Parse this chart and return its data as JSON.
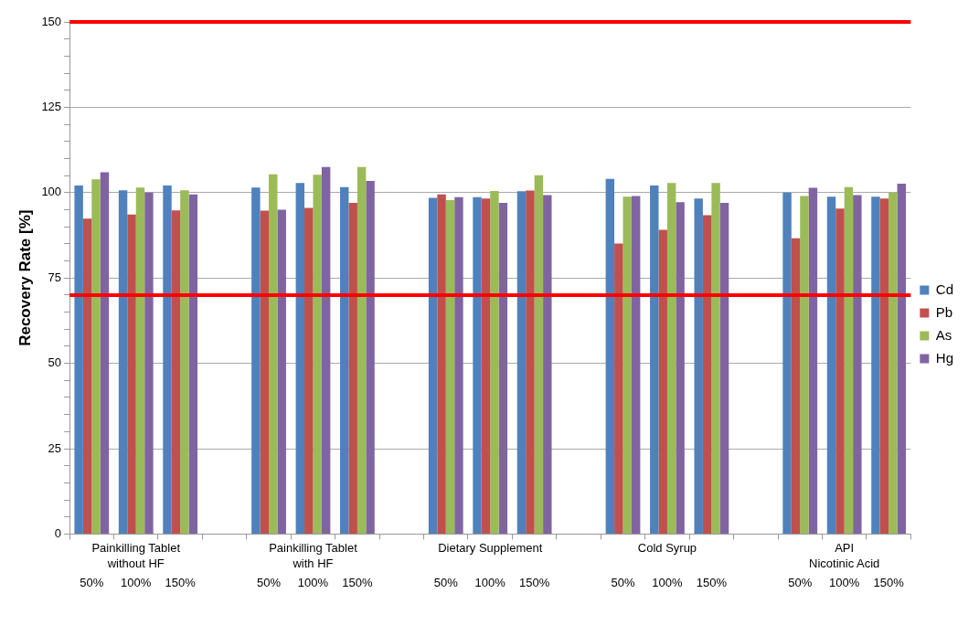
{
  "chart_data": {
    "type": "bar",
    "ylabel": "Recovery Rate [%]",
    "categories": [
      "50%",
      "100%",
      "150%",
      null,
      "50%",
      "100%",
      "150%",
      null,
      "50%",
      "100%",
      "150%",
      null,
      "50%",
      "100%",
      "150%",
      null,
      "50%",
      "100%",
      "150%"
    ],
    "series": [
      {
        "name": "Cd",
        "color": "#4f81bd",
        "values": [
          102.1,
          100.7,
          102.1,
          null,
          101.5,
          102.8,
          101.6,
          null,
          98.5,
          98.7,
          100.4,
          null,
          104.0,
          102.1,
          98.3,
          null,
          100,
          98.8,
          98.8
        ]
      },
      {
        "name": "Pb",
        "color": "#c0504d",
        "values": [
          92.4,
          93.6,
          94.8,
          null,
          94.7,
          95.5,
          97.0,
          null,
          99.5,
          98.3,
          100.6,
          null,
          85.1,
          89.1,
          93.4,
          null,
          86.6,
          95.3,
          98.3
        ]
      },
      {
        "name": "As",
        "color": "#9bbb59",
        "values": [
          103.9,
          101.5,
          100.7,
          null,
          105.4,
          105.2,
          107.5,
          null,
          97.8,
          100.5,
          105.1,
          null,
          98.8,
          102.8,
          102.8,
          null,
          99.0,
          101.6,
          100
        ]
      },
      {
        "name": "Hg",
        "color": "#8064a2",
        "values": [
          106.0,
          100,
          99.5,
          null,
          95.0,
          107.5,
          103.4,
          null,
          98.7,
          97.0,
          99.3,
          null,
          99.0,
          97.2,
          97.0,
          null,
          101.4,
          99.3,
          102.6
        ]
      }
    ],
    "annotations": [
      "Painkilling Tablet\nwithout HF",
      "Painkilling Tablet\nwith HF",
      "Dietary Supplement",
      "Cold Syrup",
      "API\nNicotinic Acid"
    ],
    "ylim": [
      0,
      150
    ],
    "yticks": [
      0,
      {
        "value": 5,
        "label": null
      },
      {
        "value": 10,
        "label": null
      },
      {
        "value": 15,
        "label": null
      },
      {
        "value": 20,
        "label": null
      },
      25,
      {
        "value": 30,
        "label": null
      },
      {
        "value": 35,
        "label": null
      },
      {
        "value": 40,
        "label": null
      },
      {
        "value": 45,
        "label": null
      },
      50,
      {
        "value": 55,
        "label": null
      },
      {
        "value": 60,
        "label": null
      },
      {
        "value": 65,
        "label": null
      },
      {
        "value": 70,
        "label": null
      },
      75,
      {
        "value": 80,
        "label": null
      },
      {
        "value": 85,
        "label": null
      },
      {
        "value": 90,
        "label": null
      },
      {
        "value": 95,
        "label": null
      },
      100,
      {
        "value": 105,
        "label": null
      },
      {
        "value": 110,
        "label": null
      },
      {
        "value": 115,
        "label": null
      },
      {
        "value": 120,
        "label": null
      },
      125,
      {
        "value": 130,
        "label": null
      },
      {
        "value": 135,
        "label": null
      },
      {
        "value": 140,
        "label": null
      },
      {
        "value": 145,
        "label": null
      },
      150
    ],
    "ref_lines": [
      {
        "axis": "y",
        "value": 70,
        "color": "#ff0000"
      },
      {
        "axis": "y",
        "value": 150,
        "color": "#ff0000"
      }
    ],
    "grid": "y",
    "legend": "right"
  }
}
